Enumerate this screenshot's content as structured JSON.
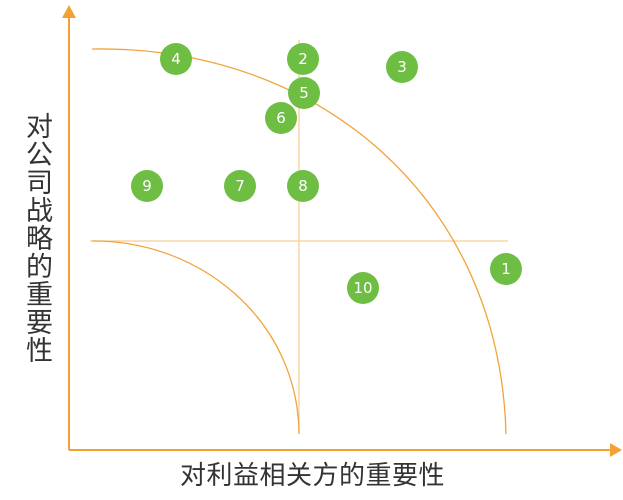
{
  "axes": {
    "y_label": "对公司战略的重要性",
    "x_label": "对利益相关方的重要性",
    "color": "#f5a033"
  },
  "colors": {
    "curve": "#f2a43a",
    "divider": "#f7cf96",
    "bubble": "#6fbe44",
    "bubble_text": "#ffffff"
  },
  "points": [
    {
      "label": "4"
    },
    {
      "label": "2"
    },
    {
      "label": "3"
    },
    {
      "label": "5"
    },
    {
      "label": "6"
    },
    {
      "label": "9"
    },
    {
      "label": "7"
    },
    {
      "label": "8"
    },
    {
      "label": "1"
    },
    {
      "label": "10"
    }
  ]
}
